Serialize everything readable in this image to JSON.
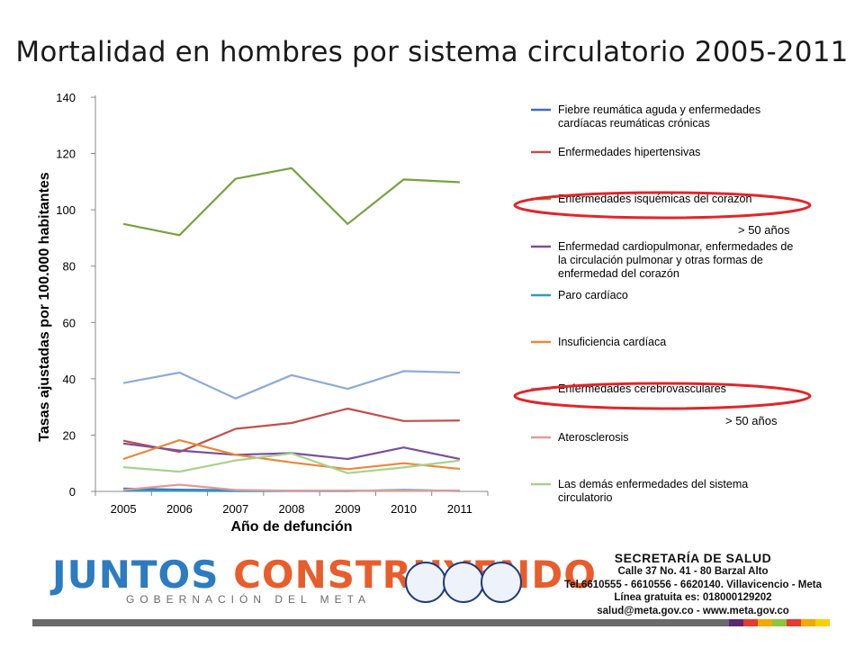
{
  "slide": {
    "title": "Mortalidad en hombres por sistema circulatorio 2005-2011"
  },
  "annotations": {
    "label_1": "> 50 años",
    "label_2": "> 50 años",
    "highlight_color": "#e0262b"
  },
  "footer": {
    "brand_word_1": "JUNTOS",
    "brand_word_2": "CONSTRUYENDO",
    "brand_sub": "GOBERNACIÓN DEL META",
    "office": "SECRETARÍA DE SALUD",
    "address": "Calle 37 No. 41 - 80 Barzal Alto",
    "phone": "Tel.6610555 - 6610556 - 6620140. Villavicencio - Meta",
    "hotline": "Línea gratuita es: 018000129202",
    "contact": "salud@meta.gov.co - www.meta.gov.co",
    "stripe_colors": [
      "#5a2a6e",
      "#e63b2e",
      "#f2a900",
      "#8cc63f",
      "#e63b2e",
      "#f2a900",
      "#f7d000"
    ]
  },
  "chart_data": {
    "type": "line",
    "title": "",
    "xlabel": "Año de defunción",
    "ylabel": "Tasas ajustadas por 100.000 habitantes",
    "x": [
      "2005",
      "2006",
      "2007",
      "2008",
      "2009",
      "2010",
      "2011"
    ],
    "ylim": [
      0,
      140
    ],
    "yticks": [
      0,
      20,
      40,
      60,
      80,
      100,
      120,
      140
    ],
    "grid": false,
    "legend_position": "right",
    "series": [
      {
        "name": "Fiebre reumática aguda y enfermedades cardíacas reumáticas crónicas",
        "color": "#3a6fbf",
        "values": [
          1.0,
          0.6,
          0.4,
          0.2,
          0.2,
          0.4,
          0.2
        ]
      },
      {
        "name": "Enfermedades hipertensivas",
        "color": "#c0504d",
        "values": [
          18.0,
          14.0,
          22.2,
          24.3,
          29.4,
          25.0,
          25.2
        ]
      },
      {
        "name": "Enfermedades isquémicas del corazón",
        "color": "#77a142",
        "values": [
          95.0,
          91.0,
          111.0,
          114.8,
          95.0,
          110.8,
          109.8
        ]
      },
      {
        "name": "Enfermedad cardiopulmonar, enfermedades de la circulación pulmonar y otras formas de enfermedad del corazón",
        "color": "#7a4f9a",
        "values": [
          17.0,
          14.5,
          13.0,
          13.6,
          11.5,
          15.6,
          11.5
        ]
      },
      {
        "name": "Paro cardíaco",
        "color": "#2f9bbf",
        "values": [
          0.3,
          0.2,
          0.1,
          0.1,
          0.1,
          0.5,
          0.1
        ]
      },
      {
        "name": "Insuficiencia cardíaca",
        "color": "#e8883a",
        "values": [
          11.5,
          18.2,
          13.0,
          10.3,
          7.9,
          10.0,
          8.0
        ]
      },
      {
        "name": "Enfermedades cerebrovasculares",
        "color": "#8eaad6",
        "values": [
          38.5,
          42.2,
          33.0,
          41.3,
          36.4,
          42.7,
          42.2
        ]
      },
      {
        "name": "Aterosclerosis",
        "color": "#e39a9a",
        "values": [
          0.5,
          2.4,
          0.5,
          0.2,
          0.3,
          0.3,
          0.2
        ]
      },
      {
        "name": "Las demás enfermedades del sistema circulatorio",
        "color": "#a9d08e",
        "values": [
          8.6,
          7.0,
          11.0,
          13.5,
          6.5,
          8.5,
          11.0
        ]
      }
    ]
  }
}
